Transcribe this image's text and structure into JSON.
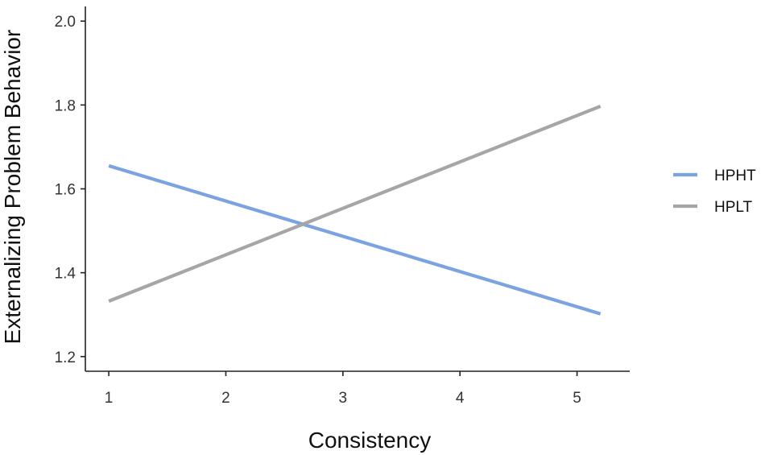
{
  "chart_data": {
    "type": "line",
    "title": "",
    "xlabel": "Consistency",
    "ylabel": "Externalizing Problem Behavior",
    "xlim": [
      0.8,
      5.45
    ],
    "ylim": [
      1.165,
      2.035
    ],
    "xticks": [
      1,
      2,
      3,
      4,
      5
    ],
    "yticks": [
      1.2,
      1.4,
      1.6,
      1.8,
      2.0
    ],
    "xtick_labels": [
      "1",
      "2",
      "3",
      "4",
      "5"
    ],
    "ytick_labels": [
      "1.2",
      "1.4",
      "1.6",
      "1.8",
      "2.0"
    ],
    "grid": false,
    "legend_position": "right",
    "series": [
      {
        "name": "HPHT",
        "color": "#7aa3e0",
        "x": [
          1,
          5.2
        ],
        "y": [
          1.655,
          1.302
        ]
      },
      {
        "name": "HPLT",
        "color": "#a6a6a6",
        "x": [
          1,
          5.2
        ],
        "y": [
          1.332,
          1.797
        ]
      }
    ]
  }
}
